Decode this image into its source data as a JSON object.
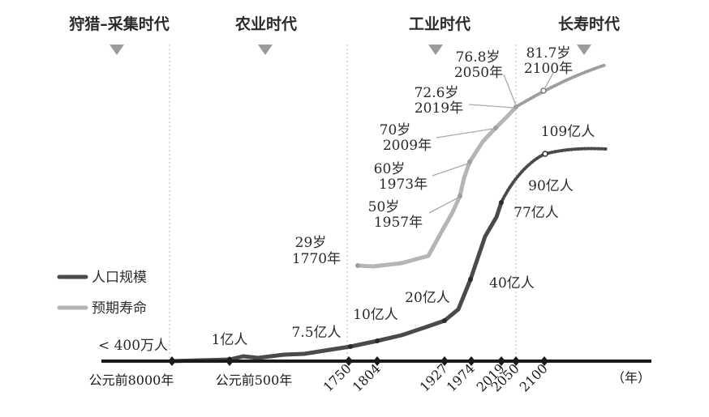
{
  "chart_data": {
    "type": "line",
    "title": "",
    "xlabel": "（年）",
    "ylabel": "",
    "eras": [
      "狩猎–采集时代",
      "农业时代",
      "工业时代",
      "长寿时代"
    ],
    "x_tick_labels": [
      "公元前8000年",
      "公元前500年",
      "1750",
      "1804",
      "1927",
      "1974",
      "2019",
      "2050",
      "2100"
    ],
    "series": [
      {
        "name": "人口规模",
        "color": "#4a4a4a",
        "annotations": [
          "< 400万人",
          "1亿人",
          "7.5亿人",
          "10亿人",
          "20亿人",
          "40亿人",
          "77亿人",
          "90亿人",
          "109亿人"
        ],
        "points": [
          {
            "x": "公元前8000年",
            "value": "< 400万人"
          },
          {
            "x": "公元前500年",
            "value": "1亿人"
          },
          {
            "x": "1750",
            "value": "7.5亿人"
          },
          {
            "x": "1804",
            "value": "10亿人"
          },
          {
            "x": "1927",
            "value": "20亿人"
          },
          {
            "x": "1974",
            "value": "40亿人"
          },
          {
            "x": "2019",
            "value": "77亿人"
          },
          {
            "x": "2050",
            "value": "90亿人",
            "projected": true
          },
          {
            "x": "2100",
            "value": "109亿人",
            "projected": true
          }
        ]
      },
      {
        "name": "预期寿命",
        "color": "#b5b5b5",
        "annotations": [
          {
            "value": "29岁",
            "year": "1770年"
          },
          {
            "value": "50岁",
            "year": "1957年"
          },
          {
            "value": "60岁",
            "year": "1973年"
          },
          {
            "value": "70岁",
            "year": "2009年"
          },
          {
            "value": "72.6岁",
            "year": "2019年"
          },
          {
            "value": "76.8岁",
            "year": "2050年"
          },
          {
            "value": "81.7岁",
            "year": "2100年"
          }
        ]
      }
    ],
    "colors": {
      "population": "#4a4a4a",
      "life_expectancy": "#b5b5b5",
      "axis": "#1a1a1a",
      "divider": "#c8c8c8"
    }
  }
}
